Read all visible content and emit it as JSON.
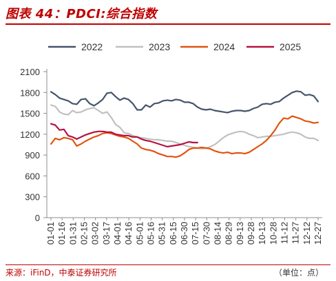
{
  "header": {
    "title": "图表 44：PDCI:综合指数"
  },
  "footer": {
    "source": "来源：iFinD，中泰证券研究所",
    "unit": "（单位：点）"
  },
  "chart_data": {
    "type": "line",
    "title": "",
    "xlabel": "",
    "ylabel": "",
    "ylim": [
      0,
      2100
    ],
    "yticks": [
      0,
      300,
      600,
      900,
      1200,
      1500,
      1800,
      2100
    ],
    "grid": false,
    "legend_position": "top",
    "x_tick_labels": [
      "01-01",
      "01-16",
      "01-31",
      "02-15",
      "03-02",
      "03-17",
      "04-01",
      "04-16",
      "05-01",
      "05-16",
      "05-31",
      "06-15",
      "06-30",
      "07-15",
      "07-30",
      "08-14",
      "08-29",
      "09-13",
      "09-28",
      "10-13",
      "10-28",
      "11-12",
      "11-27",
      "12-12",
      "12-27"
    ],
    "series": [
      {
        "name": "2022",
        "color": "#44546a",
        "values": [
          1810,
          1770,
          1720,
          1700,
          1680,
          1640,
          1630,
          1700,
          1710,
          1640,
          1610,
          1650,
          1700,
          1790,
          1800,
          1740,
          1690,
          1720,
          1700,
          1640,
          1550,
          1550,
          1620,
          1590,
          1640,
          1650,
          1680,
          1690,
          1680,
          1700,
          1690,
          1660,
          1660,
          1640,
          1590,
          1560,
          1550,
          1560,
          1540,
          1530,
          1520,
          1510,
          1530,
          1540,
          1540,
          1530,
          1540,
          1570,
          1590,
          1630,
          1640,
          1630,
          1660,
          1670,
          1720,
          1760,
          1800,
          1820,
          1810,
          1760,
          1770,
          1750,
          1670
        ]
      },
      {
        "name": "2023",
        "color": "#c0c0c0",
        "values": [
          1620,
          1600,
          1520,
          1490,
          1480,
          1540,
          1510,
          1520,
          1550,
          1570,
          1580,
          1540,
          1500,
          1520,
          1440,
          1340,
          1300,
          1220,
          1210,
          1180,
          1160,
          1150,
          1140,
          1130,
          1120,
          1120,
          1110,
          1100,
          1100,
          1080,
          1060,
          1040,
          1020,
          1010,
          1000,
          990,
          1000,
          1020,
          1050,
          1100,
          1150,
          1190,
          1210,
          1230,
          1240,
          1230,
          1200,
          1180,
          1150,
          1160,
          1170,
          1170,
          1180,
          1190,
          1200,
          1220,
          1230,
          1220,
          1200,
          1160,
          1140,
          1140,
          1110
        ]
      },
      {
        "name": "2024",
        "color": "#e2520f",
        "values": [
          1060,
          1140,
          1120,
          1150,
          1140,
          1120,
          1030,
          1060,
          1100,
          1130,
          1160,
          1180,
          1210,
          1220,
          1210,
          1190,
          1170,
          1160,
          1140,
          1100,
          1060,
          1000,
          980,
          970,
          950,
          920,
          900,
          880,
          880,
          870,
          890,
          930,
          980,
          1000,
          1000,
          1010,
          1000,
          990,
          960,
          940,
          930,
          940,
          920,
          930,
          930,
          920,
          940,
          980,
          1020,
          1060,
          1110,
          1180,
          1260,
          1360,
          1430,
          1420,
          1460,
          1440,
          1420,
          1390,
          1380,
          1360,
          1370
        ]
      },
      {
        "name": "2025",
        "color": "#b5123f",
        "values": [
          1350,
          1330,
          1260,
          1270,
          1180,
          1160,
          1130,
          1160,
          1190,
          1210,
          1230,
          1240,
          1240,
          1230,
          1230,
          1200,
          1190,
          1180,
          1180,
          1160,
          1160,
          1130,
          1110,
          1100,
          1080,
          1060,
          1040,
          1020,
          1030,
          1040,
          1050,
          1070,
          1090,
          1080,
          1080
        ]
      }
    ]
  }
}
